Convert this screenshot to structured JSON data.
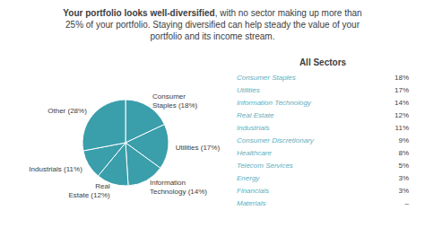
{
  "chart_data": {
    "type": "pie",
    "title": "Your portfolio looks well-diversified",
    "subtitle": ", with no sector making up more than\n25% of your portfolio. Staying diversified can help steady the value of your\nportfolio and its income stream.",
    "categories": [
      "Consumer\nStaples (18%)",
      "Utilities (17%)",
      "Information\nTechnology (14%)",
      "Real\nEstate (12%)",
      "Industrials (11%)",
      "Other (28%)"
    ],
    "values": [
      18,
      17,
      14,
      12,
      11,
      28
    ],
    "color": "#3a9eab",
    "table": {
      "title": "All Sectors",
      "color": "#5bafc0",
      "categories": [
        "Consumer Staples",
        "Utilities",
        "Information Technology",
        "Real Estate",
        "Industrials",
        "Consumer Discretionary",
        "Healthcare",
        "Telecom Services",
        "Energy",
        "Financials",
        "Materials"
      ],
      "values": [
        18,
        17,
        14,
        12,
        11,
        9,
        8,
        5,
        3,
        3,
        null
      ],
      "value_labels": [
        "18%",
        "17%",
        "14%",
        "12%",
        "11%",
        "9%",
        "8%",
        "5%",
        "3%",
        "3%",
        "–"
      ]
    }
  }
}
